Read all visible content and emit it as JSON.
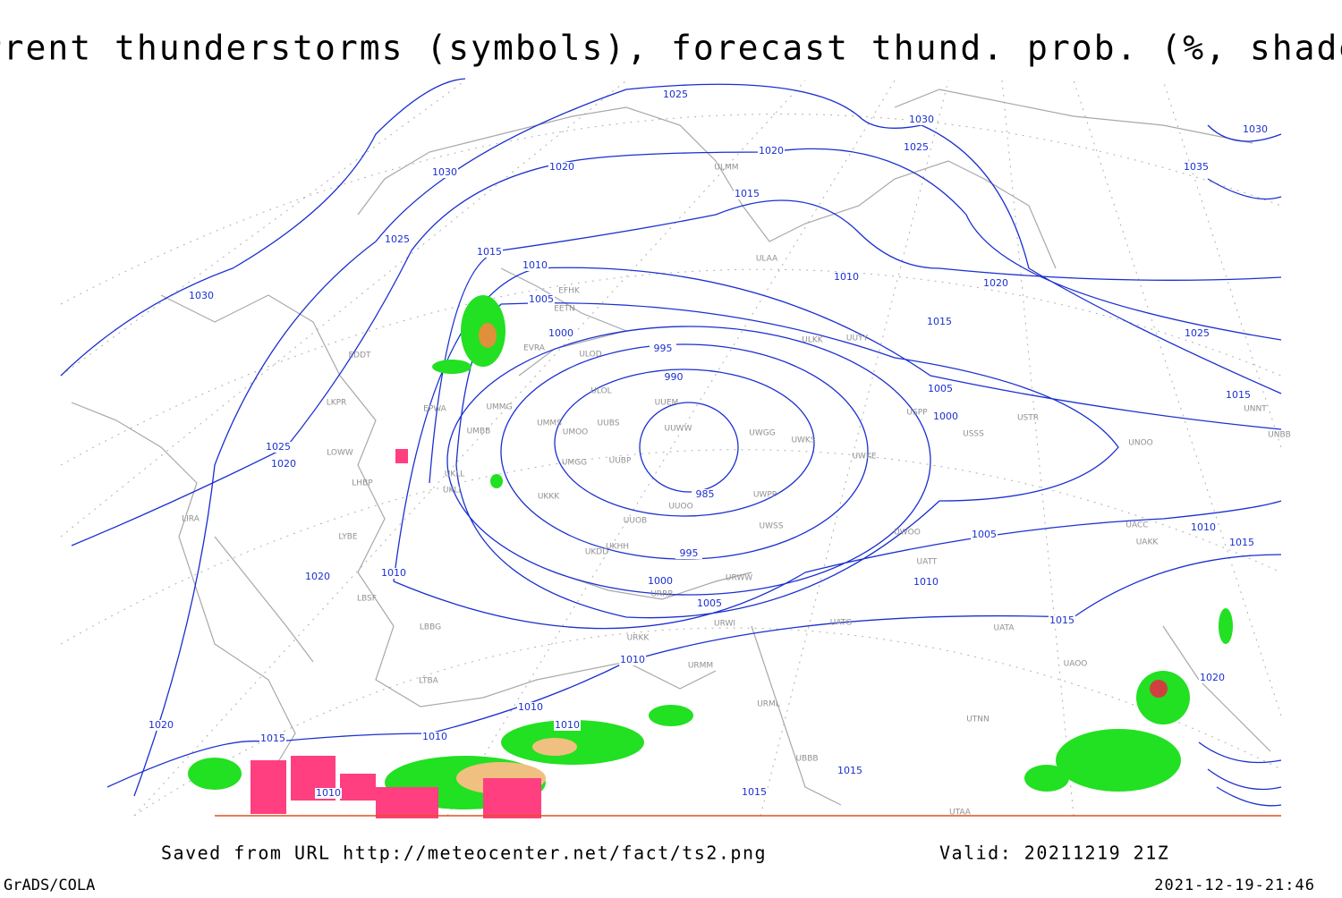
{
  "title": "Current thunderstorms (symbols), forecast thund. prob. (%, shaded)",
  "footer": {
    "saved": "Saved from URL http://meteocenter.net/fact/ts2.png",
    "valid": "Valid: 20211219 21Z",
    "software": "GrADS/COLA",
    "timestamp": "2021-12-19-21:46"
  },
  "isobar_labels": [
    "1025",
    "1030",
    "1020",
    "1025",
    "1015",
    "1010",
    "1005",
    "1000",
    "995",
    "990",
    "985",
    "995",
    "1000",
    "1005",
    "1010",
    "1020",
    "1030",
    "1025",
    "1020",
    "1020",
    "1015",
    "1010",
    "1030",
    "1025",
    "1020",
    "1015",
    "1005",
    "1000",
    "1025",
    "1015",
    "1005",
    "1010",
    "1015",
    "1010",
    "1015",
    "1010",
    "1010",
    "1010",
    "1010",
    "1015",
    "1010",
    "1020",
    "1015",
    "1015",
    "1020",
    "1035",
    "1030"
  ],
  "stations": [
    "EFHK",
    "EETN",
    "EVRA",
    "ULOD",
    "ULOL",
    "UMMG",
    "UMBB",
    "UMMS",
    "UMOO",
    "UUBS",
    "UUEM",
    "UUWW",
    "UWGG",
    "UWKS",
    "UWKE",
    "UUOO",
    "UUBP",
    "UMGG",
    "UKLL",
    "UKLI",
    "UKKK",
    "UUOB",
    "UKHH",
    "UKDD",
    "LKPR",
    "EDDT",
    "EPWA",
    "LOWW",
    "LHBP",
    "LIRA",
    "LYBE",
    "LBSF",
    "LBBG",
    "LTBA",
    "ULAA",
    "ULMM",
    "UUYY",
    "ULKK",
    "USSS",
    "USTR",
    "UNOO",
    "UNNT",
    "UNBB",
    "UACC",
    "UAKK",
    "UATT",
    "UATG",
    "UATA",
    "UAOO",
    "UTNN",
    "USPP",
    "UWOO",
    "UWPP",
    "UWSS",
    "URRR",
    "URWW",
    "URWI",
    "URKK",
    "URMM",
    "URML",
    "UTAA",
    "UBBB"
  ]
}
